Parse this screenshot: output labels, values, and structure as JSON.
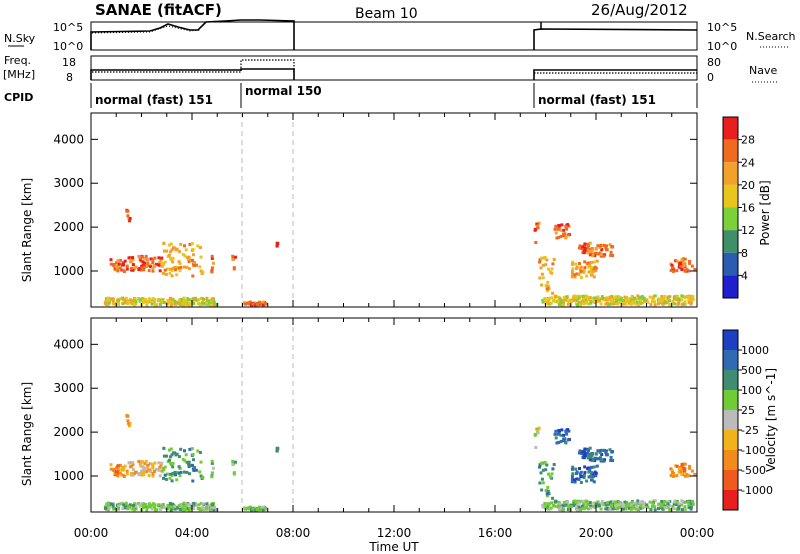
{
  "header": {
    "title": "SANAE (fitACF)",
    "beam": "Beam 10",
    "date": "26/Aug/2012"
  },
  "panels": {
    "nsky": {
      "label": "N.Sky",
      "ytick_top": "10^5",
      "ytick_bottom": "10^0"
    },
    "nsearch": {
      "label": "N.Search",
      "ytick_top": "10^5",
      "ytick_bottom": "10^0"
    },
    "freq": {
      "label_top": "Freq.",
      "label_bottom": "[MHz]",
      "ytick_top": "18",
      "ytick_bottom": "8"
    },
    "nave": {
      "label": "Nave",
      "ytick_top": "80",
      "ytick_bottom": "0"
    },
    "cpid": {
      "label": "CPID",
      "segments": [
        {
          "name": "normal (fast) 151",
          "start_hour": 0.0
        },
        {
          "name": "normal 150",
          "start_hour": 6.0
        },
        {
          "name": "normal (fast) 151",
          "start_hour": 17.8
        }
      ]
    }
  },
  "power_colorbar": {
    "label": "Power [dB]",
    "ticks": [
      "28",
      "24",
      "20",
      "16",
      "12",
      "8",
      "4"
    ],
    "colors": [
      "#e81f1f",
      "#f06a20",
      "#f2a12a",
      "#e8c61e",
      "#7bd13a",
      "#3f8f6a",
      "#2a5db0",
      "#1f1fd0"
    ]
  },
  "velocity_colorbar": {
    "label": "Velocity [m s^-1]",
    "ticks": [
      "1000",
      "500",
      "100",
      "25",
      "-25",
      "-100",
      "-500",
      "-1000"
    ],
    "colors": [
      "#1d3fc2",
      "#2f6ab3",
      "#3e8c72",
      "#6fcc35",
      "#bbbbbb",
      "#f2b21a",
      "#f28a1c",
      "#ef5a1d",
      "#e81f1f"
    ]
  },
  "chart_data": [
    {
      "type": "heatmap",
      "title": "Power",
      "ylabel": "Slant Range [km]",
      "xlabel": "Time UT",
      "xlim": [
        0,
        24
      ],
      "ylim": [
        180,
        4600
      ],
      "xticks": [
        "00:00",
        "04:00",
        "08:00",
        "12:00",
        "16:00",
        "20:00",
        "00:00"
      ],
      "yticks": [
        "1000",
        "2000",
        "3000",
        "4000"
      ],
      "clusters": [
        {
          "t0": 0.7,
          "t1": 1.4,
          "r0": 950,
          "r1": 1250,
          "level": 6
        },
        {
          "t0": 1.4,
          "t1": 2.8,
          "r0": 950,
          "r1": 1300,
          "level": 6
        },
        {
          "t0": 2.8,
          "t1": 4.4,
          "r0": 850,
          "r1": 1600,
          "level": 5
        },
        {
          "t0": 1.35,
          "t1": 1.5,
          "r0": 2100,
          "r1": 2350,
          "level": 6
        },
        {
          "t0": 4.7,
          "t1": 4.8,
          "r0": 900,
          "r1": 1450,
          "level": 6
        },
        {
          "t0": 5.55,
          "t1": 5.7,
          "r0": 1000,
          "r1": 1400,
          "level": 6
        },
        {
          "t0": 6.0,
          "t1": 6.9,
          "r0": 190,
          "r1": 260,
          "level": 6
        },
        {
          "t0": 7.3,
          "t1": 7.35,
          "r0": 1520,
          "r1": 1600,
          "level": 6
        },
        {
          "t0": 17.5,
          "t1": 17.7,
          "r0": 1550,
          "r1": 2100,
          "level": 6
        },
        {
          "t0": 17.7,
          "t1": 18.3,
          "r0": 450,
          "r1": 1300,
          "level": 5
        },
        {
          "t0": 18.3,
          "t1": 18.9,
          "r0": 1700,
          "r1": 2050,
          "level": 6
        },
        {
          "t0": 19.0,
          "t1": 20.0,
          "r0": 800,
          "r1": 1200,
          "level": 5
        },
        {
          "t0": 19.2,
          "t1": 20.6,
          "r0": 1300,
          "r1": 1600,
          "level": 6
        },
        {
          "t0": 22.9,
          "t1": 23.9,
          "r0": 950,
          "r1": 1250,
          "level": 6
        },
        {
          "t0": 0.5,
          "t1": 5.0,
          "r0": 190,
          "r1": 350,
          "level": 4
        },
        {
          "t0": 17.8,
          "t1": 23.8,
          "r0": 190,
          "r1": 400,
          "level": 4
        }
      ]
    },
    {
      "type": "heatmap",
      "title": "Velocity",
      "ylabel": "Slant Range [km]",
      "xlabel": "Time UT",
      "xlim": [
        0,
        24
      ],
      "ylim": [
        180,
        4600
      ],
      "xticks": [
        "00:00",
        "04:00",
        "08:00",
        "12:00",
        "16:00",
        "20:00",
        "00:00"
      ],
      "yticks": [
        "1000",
        "2000",
        "3000",
        "4000"
      ],
      "clusters": [
        {
          "t0": 0.7,
          "t1": 1.4,
          "r0": 950,
          "r1": 1250,
          "level": 2
        },
        {
          "t0": 1.4,
          "t1": 2.8,
          "r0": 950,
          "r1": 1300,
          "level": 3
        },
        {
          "t0": 2.8,
          "t1": 4.4,
          "r0": 850,
          "r1": 1600,
          "level": 6
        },
        {
          "t0": 1.35,
          "t1": 1.5,
          "r0": 2100,
          "r1": 2350,
          "level": 2
        },
        {
          "t0": 4.7,
          "t1": 4.8,
          "r0": 900,
          "r1": 1450,
          "level": 5
        },
        {
          "t0": 5.55,
          "t1": 5.7,
          "r0": 1000,
          "r1": 1400,
          "level": 5
        },
        {
          "t0": 6.0,
          "t1": 6.9,
          "r0": 190,
          "r1": 260,
          "level": 5
        },
        {
          "t0": 7.3,
          "t1": 7.35,
          "r0": 1520,
          "r1": 1600,
          "level": 5
        },
        {
          "t0": 17.5,
          "t1": 17.7,
          "r0": 1550,
          "r1": 2100,
          "level": 4
        },
        {
          "t0": 17.7,
          "t1": 18.3,
          "r0": 450,
          "r1": 1300,
          "level": 6
        },
        {
          "t0": 18.3,
          "t1": 18.9,
          "r0": 1700,
          "r1": 2050,
          "level": 7
        },
        {
          "t0": 19.0,
          "t1": 20.0,
          "r0": 800,
          "r1": 1200,
          "level": 7
        },
        {
          "t0": 19.2,
          "t1": 20.6,
          "r0": 1300,
          "r1": 1600,
          "level": 7
        },
        {
          "t0": 22.9,
          "t1": 23.9,
          "r0": 950,
          "r1": 1250,
          "level": 2
        },
        {
          "t0": 0.5,
          "t1": 5.0,
          "r0": 190,
          "r1": 350,
          "level": 5
        },
        {
          "t0": 17.8,
          "t1": 23.8,
          "r0": 190,
          "r1": 400,
          "level": 5
        }
      ]
    }
  ]
}
